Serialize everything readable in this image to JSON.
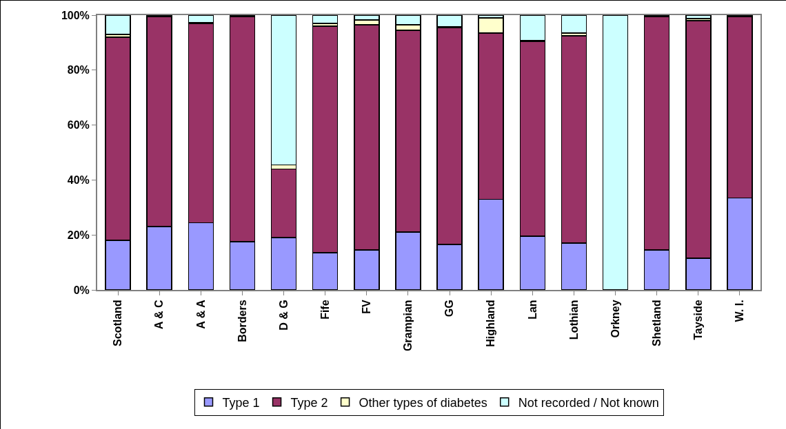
{
  "chart_data": {
    "type": "bar",
    "stacked": true,
    "categories": [
      "Scotland",
      "A & C",
      "A & A",
      "Borders",
      "D & G",
      "Fife",
      "FV",
      "Grampian",
      "GG",
      "Highland",
      "Lan",
      "Lothian",
      "Orkney",
      "Shetland",
      "Tayside",
      "W. I."
    ],
    "series": [
      {
        "name": "Type 1",
        "color": "#9999ff",
        "values": [
          18,
          23,
          24.5,
          17.5,
          19,
          13.5,
          14.5,
          21,
          16.5,
          33,
          19.5,
          17,
          0,
          14.5,
          11.5,
          33.5
        ]
      },
      {
        "name": "Type 2",
        "color": "#993366",
        "values": [
          74,
          76.5,
          72.5,
          82,
          25,
          82.5,
          82,
          73.5,
          79,
          60.5,
          71,
          75.5,
          0,
          85,
          86.5,
          66
        ]
      },
      {
        "name": "Other types of diabetes",
        "color": "#ffffcc",
        "values": [
          1,
          0.2,
          0.2,
          0.2,
          1.5,
          1,
          1.7,
          2,
          0.3,
          5.5,
          0.2,
          1,
          0,
          0.3,
          0.7,
          0.3
        ]
      },
      {
        "name": "Not recorded / Not known",
        "color": "#ccffff",
        "values": [
          7,
          0.3,
          2.8,
          0.3,
          54.5,
          3,
          1.8,
          3.5,
          4.2,
          1,
          9.3,
          6.5,
          100,
          0.2,
          1.3,
          0.2
        ]
      }
    ],
    "ylim": [
      0,
      100
    ],
    "yticks": [
      {
        "value": 0,
        "label": "0%"
      },
      {
        "value": 20,
        "label": "20%"
      },
      {
        "value": 40,
        "label": "40%"
      },
      {
        "value": 60,
        "label": "60%"
      },
      {
        "value": 80,
        "label": "80%"
      },
      {
        "value": 100,
        "label": "100%"
      }
    ],
    "grid": false,
    "legend": "bottom"
  }
}
